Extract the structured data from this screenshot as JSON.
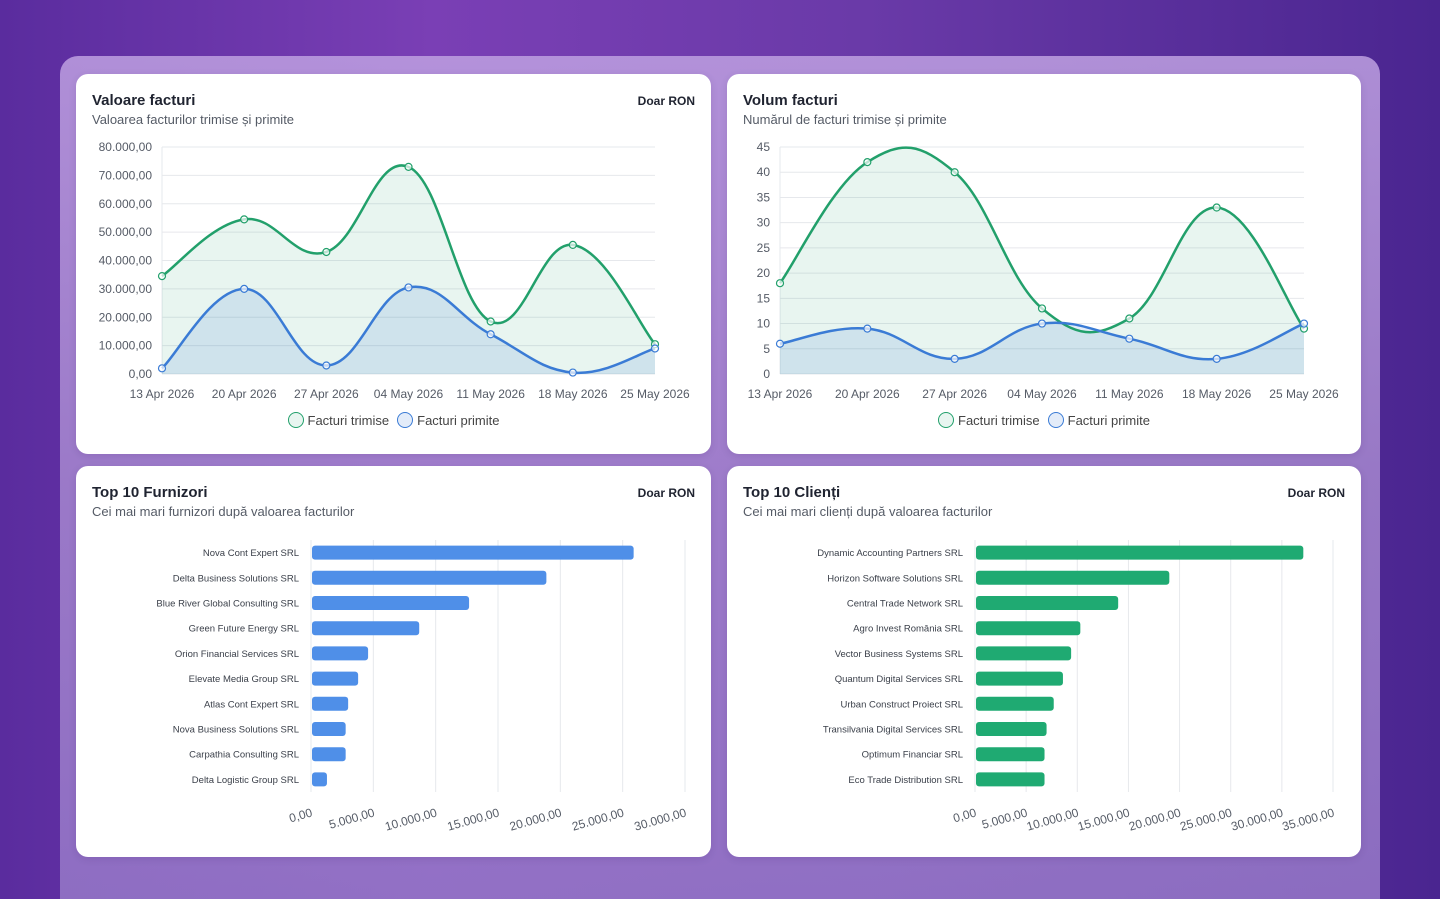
{
  "cards": {
    "value": {
      "title": "Valoare facturi",
      "subtitle": "Valoarea facturilor trimise și primite",
      "badge": "Doar RON"
    },
    "volume": {
      "title": "Volum facturi",
      "subtitle": "Numărul de facturi trimise și primite",
      "badge": ""
    },
    "suppliers": {
      "title": "Top 10 Furnizori",
      "subtitle": "Cei mai mari furnizori după valoarea facturilor",
      "badge": "Doar RON"
    },
    "clients": {
      "title": "Top 10 Clienți",
      "subtitle": "Cei mai mari clienți după valoarea facturilor",
      "badge": "Doar RON"
    }
  },
  "colors": {
    "green": "#22a06b",
    "green_fill": "rgba(34,160,107,0.10)",
    "blue": "#3a7bd5",
    "blue_fill": "rgba(58,123,213,0.14)",
    "bar_blue": "#4f8fe8",
    "bar_green": "#1faa72",
    "grid": "#e6e8ec",
    "tick": "#555b66"
  },
  "chart_data": [
    {
      "type": "line",
      "id": "value",
      "x": [
        "13 Apr 2026",
        "20 Apr 2026",
        "27 Apr 2026",
        "04 May 2026",
        "11 May 2026",
        "18 May 2026",
        "25 May 2026"
      ],
      "series": [
        {
          "name": "Facturi trimise",
          "values": [
            34500,
            54500,
            43000,
            73000,
            18500,
            45500,
            10500
          ]
        },
        {
          "name": "Facturi primite",
          "values": [
            2000,
            30000,
            3000,
            30500,
            14000,
            500,
            9000
          ]
        }
      ],
      "ylim": [
        0,
        80000
      ],
      "yticks": [
        "0,00",
        "10.000,00",
        "20.000,00",
        "30.000,00",
        "40.000,00",
        "50.000,00",
        "60.000,00",
        "70.000,00",
        "80.000,00"
      ],
      "legend": "bottom",
      "grid": true
    },
    {
      "type": "line",
      "id": "volume",
      "x": [
        "13 Apr 2026",
        "20 Apr 2026",
        "27 Apr 2026",
        "04 May 2026",
        "11 May 2026",
        "18 May 2026",
        "25 May 2026"
      ],
      "series": [
        {
          "name": "Facturi trimise",
          "values": [
            18,
            42,
            40,
            13,
            11,
            33,
            9
          ]
        },
        {
          "name": "Facturi primite",
          "values": [
            6,
            9,
            3,
            10,
            7,
            3,
            10
          ]
        }
      ],
      "ylim": [
        0,
        45
      ],
      "yticks": [
        "0",
        "5",
        "10",
        "15",
        "20",
        "25",
        "30",
        "35",
        "40",
        "45"
      ],
      "legend": "bottom",
      "grid": true
    },
    {
      "type": "bar",
      "id": "suppliers",
      "orientation": "horizontal",
      "categories": [
        "Nova Cont Expert SRL",
        "Delta Business Solutions SRL",
        "Blue River Global Consulting SRL",
        "Green Future Energy SRL",
        "Orion Financial Services SRL",
        "Elevate Media Group SRL",
        "Atlas Cont Expert SRL",
        "Nova Business Solutions SRL",
        "Carpathia Consulting SRL",
        "Delta Logistic Group SRL"
      ],
      "values": [
        25800,
        18800,
        12600,
        8600,
        4500,
        3700,
        2900,
        2700,
        2700,
        1200
      ],
      "xlim": [
        0,
        30000
      ],
      "xticks": [
        "0,00",
        "5.000,00",
        "10.000,00",
        "15.000,00",
        "20.000,00",
        "25.000,00",
        "30.000,00"
      ],
      "grid": true
    },
    {
      "type": "bar",
      "id": "clients",
      "orientation": "horizontal",
      "categories": [
        "Dynamic Accounting Partners SRL",
        "Horizon Software Solutions SRL",
        "Central Trade Network SRL",
        "Agro Invest România SRL",
        "Vector Business Systems SRL",
        "Quantum Digital Services SRL",
        "Urban Construct Proiect SRL",
        "Transilvania Digital Services SRL",
        "Optimum Financiar SRL",
        "Eco Trade Distribution SRL"
      ],
      "values": [
        32000,
        18900,
        13900,
        10200,
        9300,
        8500,
        7600,
        6900,
        6700,
        6700
      ],
      "xlim": [
        0,
        35000
      ],
      "xticks": [
        "0,00",
        "5.000,00",
        "10.000,00",
        "15.000,00",
        "20.000,00",
        "25.000,00",
        "30.000,00",
        "35.000,00"
      ],
      "grid": true
    }
  ]
}
